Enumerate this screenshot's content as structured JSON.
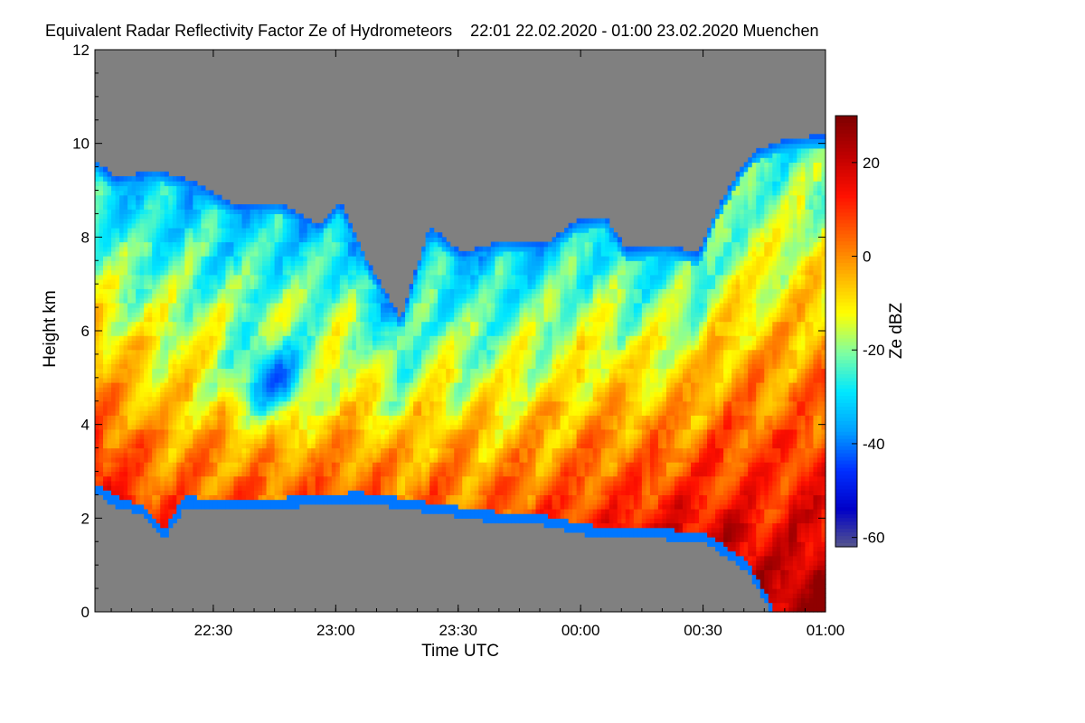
{
  "chart_data": {
    "type": "heatmap",
    "title": "Equivalent Radar Reflectivity Factor Ze of Hydrometeors    22:01 22.02.2020 - 01:00 23.02.2020 Muenchen",
    "xlabel": "Time UTC",
    "ylabel": "Height km",
    "colorbar_label": "Ze dBZ",
    "x_ticks": [
      "22:30",
      "23:00",
      "23:30",
      "00:00",
      "00:30",
      "01:00"
    ],
    "x_tick_minutes": [
      29,
      59,
      89,
      119,
      149,
      179
    ],
    "xlim_minutes": [
      0,
      179
    ],
    "y_ticks": [
      0,
      2,
      4,
      6,
      8,
      10,
      12
    ],
    "ylim": [
      0,
      12
    ],
    "colorbar_ticks": [
      20,
      0,
      -20,
      -40,
      -60
    ],
    "colorbar_range": [
      -62,
      30
    ],
    "no_echo_color": "#808080",
    "colormap": [
      "#5a5a8a",
      "#0000c8",
      "#0030ff",
      "#00a0ff",
      "#00e8ff",
      "#80ffa0",
      "#ffff00",
      "#ffb000",
      "#ff6000",
      "#ff1000",
      "#c00000",
      "#800000"
    ],
    "cloud_top_km": [
      [
        0,
        9.6
      ],
      [
        5,
        9.2
      ],
      [
        15,
        9.4
      ],
      [
        25,
        9.1
      ],
      [
        35,
        8.6
      ],
      [
        45,
        8.7
      ],
      [
        55,
        8.2
      ],
      [
        60,
        8.7
      ],
      [
        67,
        7.4
      ],
      [
        75,
        6.2
      ],
      [
        82,
        8.2
      ],
      [
        90,
        7.6
      ],
      [
        100,
        7.9
      ],
      [
        110,
        7.8
      ],
      [
        118,
        8.3
      ],
      [
        125,
        8.4
      ],
      [
        130,
        7.7
      ],
      [
        140,
        7.8
      ],
      [
        148,
        7.6
      ],
      [
        152,
        8.5
      ],
      [
        158,
        9.4
      ],
      [
        162,
        9.8
      ],
      [
        168,
        10.0
      ],
      [
        175,
        10.1
      ],
      [
        179,
        10.1
      ]
    ],
    "cloud_base_km": [
      [
        0,
        2.6
      ],
      [
        5,
        2.3
      ],
      [
        12,
        2.1
      ],
      [
        17,
        1.6
      ],
      [
        22,
        2.3
      ],
      [
        35,
        2.2
      ],
      [
        50,
        2.3
      ],
      [
        65,
        2.4
      ],
      [
        80,
        2.2
      ],
      [
        95,
        2.0
      ],
      [
        110,
        1.9
      ],
      [
        120,
        1.7
      ],
      [
        130,
        1.6
      ],
      [
        140,
        1.6
      ],
      [
        150,
        1.5
      ],
      [
        160,
        0.9
      ],
      [
        166,
        0.0
      ],
      [
        179,
        0.0
      ]
    ]
  }
}
